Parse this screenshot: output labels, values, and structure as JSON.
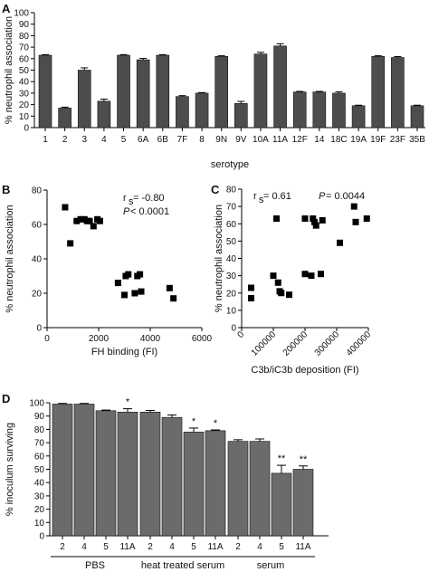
{
  "chart_data": [
    {
      "id": "A",
      "type": "bar",
      "panel_label": "A",
      "xlabel": "serotype",
      "ylabel": "% neutrophil association",
      "ylim": [
        0,
        100
      ],
      "yticks": [
        0,
        10,
        20,
        30,
        40,
        50,
        60,
        70,
        80,
        90,
        100
      ],
      "categories": [
        "1",
        "2",
        "3",
        "4",
        "5",
        "6A",
        "6B",
        "7F",
        "8",
        "9N",
        "9V",
        "10A",
        "11A",
        "12F",
        "14",
        "18C",
        "19A",
        "19F",
        "23F",
        "35B"
      ],
      "values": [
        63,
        17,
        50,
        23,
        63,
        59,
        63,
        27,
        30,
        62,
        21,
        64,
        71,
        31,
        31,
        30,
        19,
        62,
        61,
        19
      ],
      "errors": [
        0.5,
        0.8,
        2,
        1.8,
        0.5,
        1.2,
        0.5,
        0.8,
        0.5,
        0.5,
        1.8,
        1.5,
        2,
        0.5,
        0.5,
        1.2,
        0.5,
        0.5,
        0.8,
        0.5
      ]
    },
    {
      "id": "B",
      "type": "scatter",
      "panel_label": "B",
      "xlabel": "FH binding (FI)",
      "ylabel": "% neutrophil association",
      "xlim": [
        0,
        6000
      ],
      "ylim": [
        0,
        80
      ],
      "xticks": [
        0,
        2000,
        4000,
        6000
      ],
      "yticks": [
        0,
        20,
        40,
        60,
        80
      ],
      "points": [
        [
          700,
          70
        ],
        [
          900,
          49
        ],
        [
          1150,
          62
        ],
        [
          1300,
          63
        ],
        [
          1450,
          63
        ],
        [
          1550,
          62
        ],
        [
          1650,
          62
        ],
        [
          1800,
          59
        ],
        [
          1950,
          63
        ],
        [
          2050,
          62
        ],
        [
          2750,
          26
        ],
        [
          3000,
          19
        ],
        [
          3050,
          30
        ],
        [
          3150,
          31
        ],
        [
          3400,
          20
        ],
        [
          3500,
          30
        ],
        [
          3600,
          31
        ],
        [
          3650,
          21
        ],
        [
          4750,
          23
        ],
        [
          4900,
          17
        ]
      ],
      "stat_r": "r",
      "stat_r_sub": "s",
      "stat_r_value": " = -0.80",
      "stat_p": "P",
      "stat_p_value": " < 0.0001"
    },
    {
      "id": "C",
      "type": "scatter",
      "panel_label": "C",
      "xlabel": "C3b/iC3b deposition (FI)",
      "ylabel": "% neutrophil association",
      "xlim": [
        0,
        400000
      ],
      "ylim": [
        0,
        80
      ],
      "xticks": [
        0,
        100000,
        200000,
        300000,
        400000
      ],
      "yticks": [
        0,
        10,
        20,
        30,
        40,
        50,
        60,
        70,
        80
      ],
      "points": [
        [
          30000,
          17
        ],
        [
          30000,
          23
        ],
        [
          100000,
          30
        ],
        [
          110000,
          63
        ],
        [
          115000,
          26
        ],
        [
          120000,
          21
        ],
        [
          125000,
          20
        ],
        [
          150000,
          19
        ],
        [
          200000,
          31
        ],
        [
          200000,
          63
        ],
        [
          220000,
          30
        ],
        [
          225000,
          63
        ],
        [
          230000,
          61
        ],
        [
          235000,
          59
        ],
        [
          250000,
          31
        ],
        [
          255000,
          62
        ],
        [
          310000,
          49
        ],
        [
          355000,
          70
        ],
        [
          360000,
          61
        ],
        [
          395000,
          63
        ]
      ],
      "stat_r": "r",
      "stat_r_sub": "s",
      "stat_r_value": " = 0.61",
      "stat_p": "P",
      "stat_p_value": " = 0.0044"
    },
    {
      "id": "D",
      "type": "bar",
      "panel_label": "D",
      "ylabel": "% inoculum surviving",
      "ylim": [
        0,
        100
      ],
      "yticks": [
        0,
        10,
        20,
        30,
        40,
        50,
        60,
        70,
        80,
        90,
        100
      ],
      "groups": [
        {
          "name": "PBS",
          "categories": [
            "2",
            "4",
            "5",
            "11A"
          ],
          "values": [
            99,
            99,
            94,
            93
          ],
          "errors": [
            0.5,
            0.5,
            0.5,
            2.5
          ],
          "stars": [
            "",
            "",
            "",
            "*"
          ]
        },
        {
          "name": "heat treated serum",
          "categories": [
            "2",
            "4",
            "5",
            "11A"
          ],
          "values": [
            93,
            89,
            78,
            79
          ],
          "errors": [
            1.2,
            1.8,
            3,
            0.6
          ],
          "stars": [
            "",
            "",
            "*",
            "*"
          ]
        },
        {
          "name": "serum",
          "categories": [
            "2",
            "4",
            "5",
            "11A"
          ],
          "values": [
            71,
            71,
            47,
            50
          ],
          "errors": [
            1.2,
            1.8,
            6,
            2.5
          ],
          "stars": [
            "",
            "",
            "**",
            "**"
          ]
        }
      ]
    }
  ]
}
